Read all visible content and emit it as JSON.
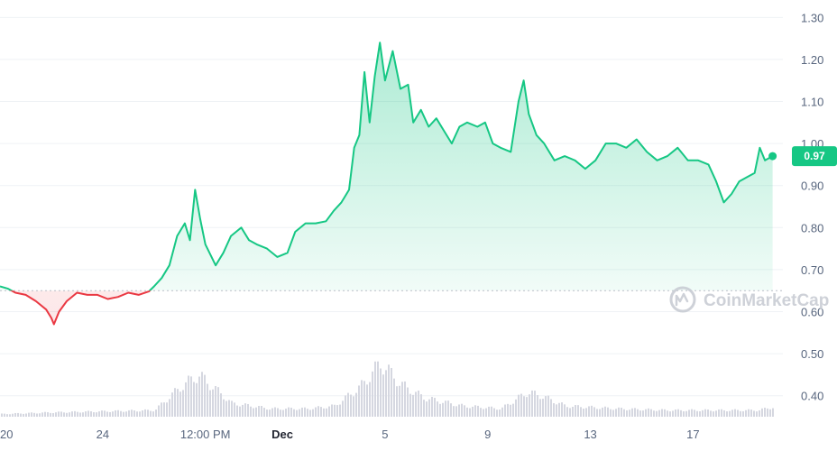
{
  "chart_data": {
    "type": "area",
    "baseline": 0.65,
    "y_ticks": [
      "0.40",
      "0.50",
      "0.60",
      "0.70",
      "0.80",
      "0.90",
      "1.00",
      "1.10",
      "1.20",
      "1.30"
    ],
    "x_ticks": [
      {
        "label": "20",
        "x": 0
      },
      {
        "label": "24",
        "x": 4
      },
      {
        "label": "12:00 PM",
        "x": 8
      },
      {
        "label": "Dec",
        "x": 11
      },
      {
        "label": "5",
        "x": 15
      },
      {
        "label": "9",
        "x": 19
      },
      {
        "label": "13",
        "x": 23
      },
      {
        "label": "17",
        "x": 27
      }
    ],
    "ylim": [
      0.35,
      1.32
    ],
    "xlim": [
      0,
      30.5
    ],
    "current_price": "0.97",
    "colors": {
      "up": "#16c784",
      "down": "#ea3943",
      "volume": "#d5d7e0",
      "grid": "#eff2f5"
    },
    "price": [
      [
        0,
        0.66
      ],
      [
        0.3,
        0.655
      ],
      [
        0.6,
        0.645
      ],
      [
        1.0,
        0.64
      ],
      [
        1.4,
        0.625
      ],
      [
        1.8,
        0.605
      ],
      [
        2.0,
        0.585
      ],
      [
        2.1,
        0.57
      ],
      [
        2.3,
        0.6
      ],
      [
        2.6,
        0.625
      ],
      [
        3.0,
        0.645
      ],
      [
        3.4,
        0.64
      ],
      [
        3.8,
        0.64
      ],
      [
        4.2,
        0.63
      ],
      [
        4.6,
        0.635
      ],
      [
        5.0,
        0.645
      ],
      [
        5.4,
        0.64
      ],
      [
        5.8,
        0.648
      ],
      [
        6.0,
        0.66
      ],
      [
        6.3,
        0.68
      ],
      [
        6.6,
        0.71
      ],
      [
        6.9,
        0.78
      ],
      [
        7.2,
        0.81
      ],
      [
        7.4,
        0.77
      ],
      [
        7.6,
        0.89
      ],
      [
        7.8,
        0.82
      ],
      [
        8.0,
        0.76
      ],
      [
        8.4,
        0.71
      ],
      [
        8.7,
        0.74
      ],
      [
        9.0,
        0.78
      ],
      [
        9.4,
        0.8
      ],
      [
        9.7,
        0.77
      ],
      [
        10.0,
        0.76
      ],
      [
        10.4,
        0.75
      ],
      [
        10.8,
        0.73
      ],
      [
        11.2,
        0.74
      ],
      [
        11.5,
        0.79
      ],
      [
        11.9,
        0.81
      ],
      [
        12.3,
        0.81
      ],
      [
        12.7,
        0.815
      ],
      [
        13.0,
        0.84
      ],
      [
        13.3,
        0.86
      ],
      [
        13.6,
        0.89
      ],
      [
        13.8,
        0.99
      ],
      [
        14.0,
        1.02
      ],
      [
        14.2,
        1.17
      ],
      [
        14.4,
        1.05
      ],
      [
        14.6,
        1.16
      ],
      [
        14.8,
        1.24
      ],
      [
        15.0,
        1.15
      ],
      [
        15.3,
        1.22
      ],
      [
        15.6,
        1.13
      ],
      [
        15.9,
        1.14
      ],
      [
        16.1,
        1.05
      ],
      [
        16.4,
        1.08
      ],
      [
        16.7,
        1.04
      ],
      [
        17.0,
        1.06
      ],
      [
        17.3,
        1.03
      ],
      [
        17.6,
        1.0
      ],
      [
        17.9,
        1.04
      ],
      [
        18.2,
        1.05
      ],
      [
        18.6,
        1.04
      ],
      [
        18.9,
        1.05
      ],
      [
        19.2,
        1.0
      ],
      [
        19.5,
        0.99
      ],
      [
        19.9,
        0.98
      ],
      [
        20.2,
        1.1
      ],
      [
        20.4,
        1.15
      ],
      [
        20.6,
        1.07
      ],
      [
        20.9,
        1.02
      ],
      [
        21.2,
        1.0
      ],
      [
        21.6,
        0.96
      ],
      [
        22.0,
        0.97
      ],
      [
        22.4,
        0.96
      ],
      [
        22.8,
        0.94
      ],
      [
        23.2,
        0.96
      ],
      [
        23.6,
        1.0
      ],
      [
        24.0,
        1.0
      ],
      [
        24.4,
        0.99
      ],
      [
        24.8,
        1.01
      ],
      [
        25.2,
        0.98
      ],
      [
        25.6,
        0.96
      ],
      [
        26.0,
        0.97
      ],
      [
        26.4,
        0.99
      ],
      [
        26.8,
        0.96
      ],
      [
        27.2,
        0.96
      ],
      [
        27.6,
        0.95
      ],
      [
        27.9,
        0.91
      ],
      [
        28.2,
        0.86
      ],
      [
        28.5,
        0.88
      ],
      [
        28.8,
        0.91
      ],
      [
        29.1,
        0.92
      ],
      [
        29.4,
        0.93
      ],
      [
        29.6,
        0.99
      ],
      [
        29.8,
        0.96
      ],
      [
        30.1,
        0.97
      ]
    ],
    "volume": [
      [
        0,
        0.05
      ],
      [
        2,
        0.08
      ],
      [
        4,
        0.1
      ],
      [
        6,
        0.12
      ],
      [
        7,
        0.55
      ],
      [
        7.7,
        0.78
      ],
      [
        8.4,
        0.5
      ],
      [
        9,
        0.25
      ],
      [
        10.5,
        0.15
      ],
      [
        12,
        0.15
      ],
      [
        13,
        0.2
      ],
      [
        14,
        0.55
      ],
      [
        14.8,
        1.0
      ],
      [
        15.6,
        0.6
      ],
      [
        16.5,
        0.35
      ],
      [
        18,
        0.2
      ],
      [
        19.5,
        0.15
      ],
      [
        20.5,
        0.45
      ],
      [
        21,
        0.4
      ],
      [
        22,
        0.2
      ],
      [
        24,
        0.15
      ],
      [
        26,
        0.12
      ],
      [
        28,
        0.12
      ],
      [
        29.5,
        0.12
      ],
      [
        30.1,
        0.18
      ]
    ]
  },
  "watermark": {
    "text": "CoinMarketCap",
    "icon": "coinmarketcap-logo-icon"
  }
}
